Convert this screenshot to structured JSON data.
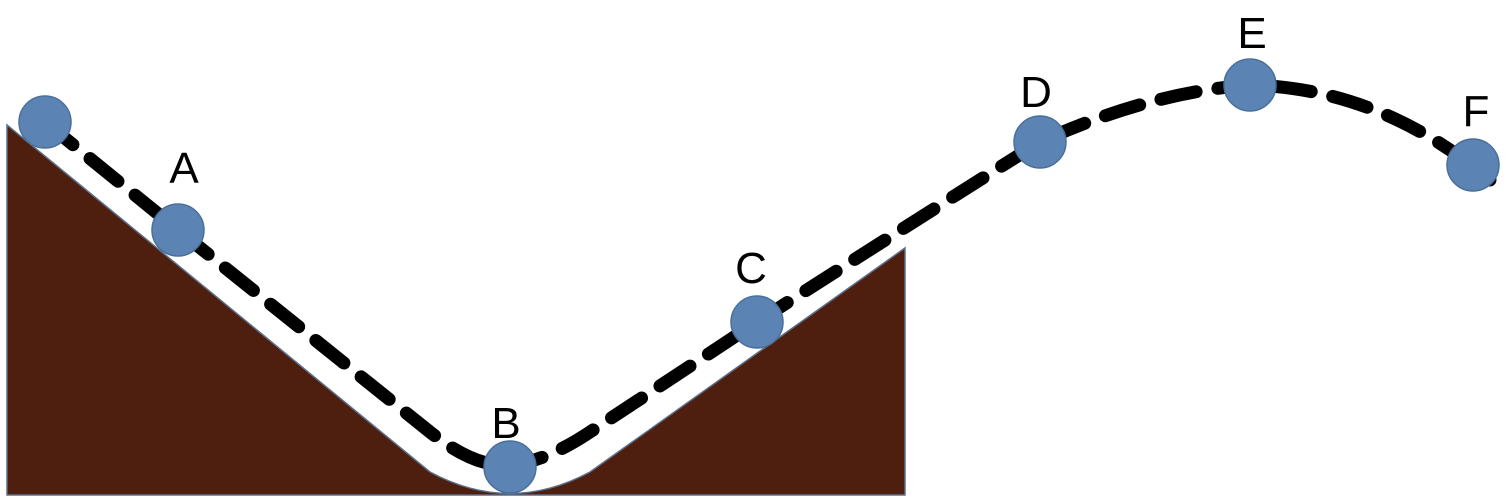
{
  "colors": {
    "ground": "#4e1f0e",
    "ground_edge": "#5b6f8c",
    "ball": "#5b84b5",
    "trajectory": "#000000",
    "label": "#000000",
    "background": "#ffffff"
  },
  "labels": {
    "a": "A",
    "b": "B",
    "c": "C",
    "d": "D",
    "e": "E",
    "f": "F"
  }
}
